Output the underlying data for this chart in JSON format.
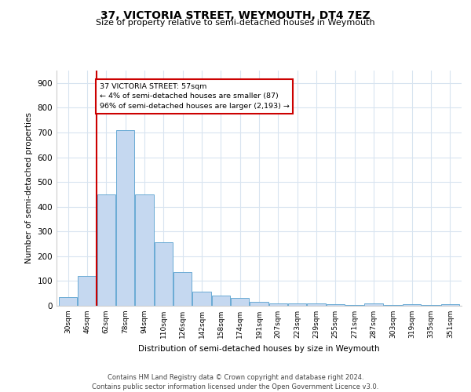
{
  "title1": "37, VICTORIA STREET, WEYMOUTH, DT4 7EZ",
  "title2": "Size of property relative to semi-detached houses in Weymouth",
  "xlabel": "Distribution of semi-detached houses by size in Weymouth",
  "ylabel": "Number of semi-detached properties",
  "categories": [
    "30sqm",
    "46sqm",
    "62sqm",
    "78sqm",
    "94sqm",
    "110sqm",
    "126sqm",
    "142sqm",
    "158sqm",
    "174sqm",
    "191sqm",
    "207sqm",
    "223sqm",
    "239sqm",
    "255sqm",
    "271sqm",
    "287sqm",
    "303sqm",
    "319sqm",
    "335sqm",
    "351sqm"
  ],
  "values": [
    35,
    120,
    450,
    710,
    450,
    255,
    135,
    57,
    40,
    32,
    15,
    10,
    8,
    8,
    5,
    3,
    8,
    3,
    5,
    3,
    7
  ],
  "bar_color": "#c5d8f0",
  "bar_edge_color": "#6aaad4",
  "vline_x": 1.5,
  "vline_color": "#cc0000",
  "annotation_text": "37 VICTORIA STREET: 57sqm\n← 4% of semi-detached houses are smaller (87)\n96% of semi-detached houses are larger (2,193) →",
  "annotation_box_color": "#ffffff",
  "annotation_box_edge": "#cc0000",
  "ylim": [
    0,
    950
  ],
  "yticks": [
    0,
    100,
    200,
    300,
    400,
    500,
    600,
    700,
    800,
    900
  ],
  "footer": "Contains HM Land Registry data © Crown copyright and database right 2024.\nContains public sector information licensed under the Open Government Licence v3.0.",
  "bg_color": "#ffffff",
  "plot_bg_color": "#ffffff",
  "grid_color": "#d8e4f0"
}
